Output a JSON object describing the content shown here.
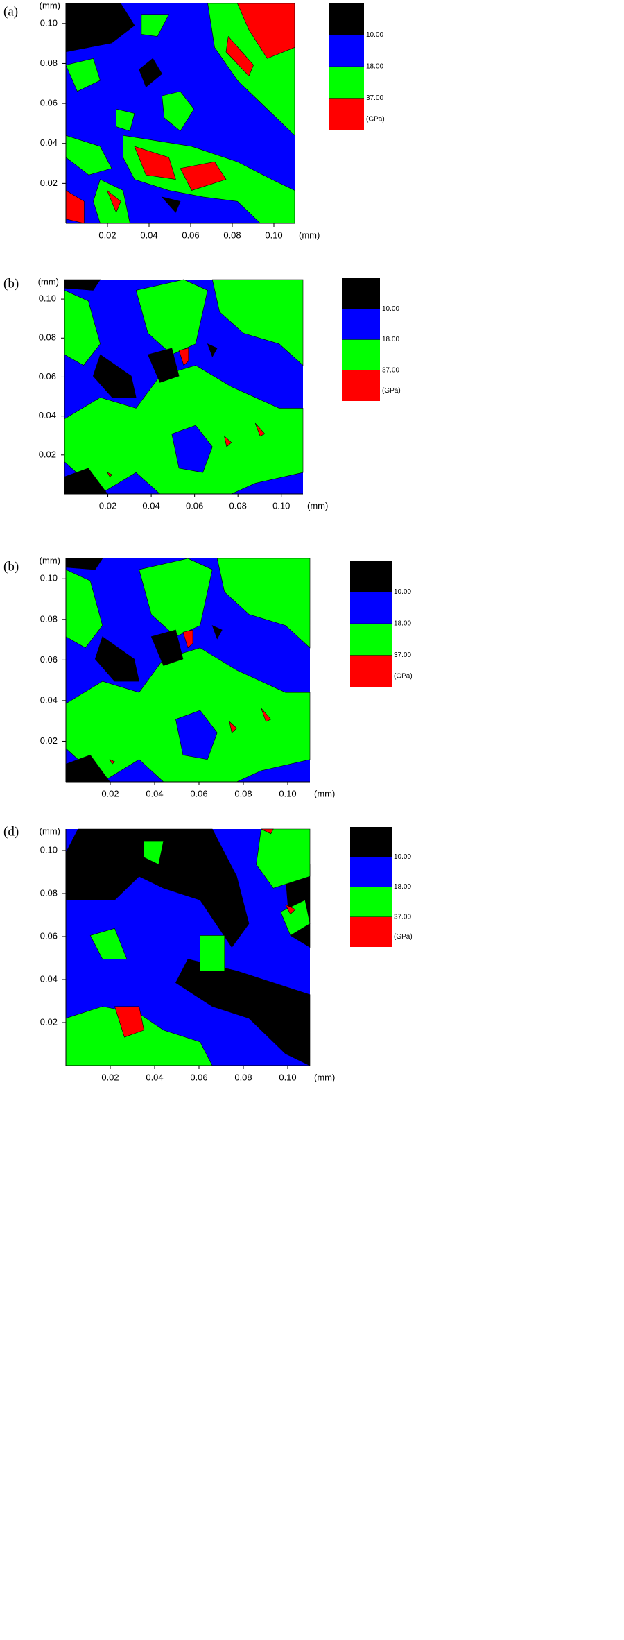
{
  "chart_data": [
    {
      "type": "contour",
      "panel_label": "(a)",
      "x_unit": "(mm)",
      "y_unit": "(mm)",
      "xlim": [
        0,
        0.11
      ],
      "ylim": [
        0,
        0.11
      ],
      "xticks": [
        0.02,
        0.04,
        0.06,
        0.08,
        {
          "value": 0.1,
          "label": "0.10"
        }
      ],
      "yticks": [
        0.02,
        0.04,
        0.06,
        0.08,
        {
          "value": 0.1,
          "label": "0.10"
        }
      ],
      "levels": [
        {
          "value": 10,
          "label": "10.00"
        },
        {
          "value": 18,
          "label": "18.00"
        },
        {
          "value": 37,
          "label": "37.00"
        }
      ],
      "level_unit": "(GPa)",
      "colors": [
        "#000000",
        "#0000ff",
        "#00ff00",
        "#ff0000"
      ]
    },
    {
      "type": "contour",
      "panel_label": "(b)",
      "x_unit": "(mm)",
      "y_unit": "(mm)",
      "xlim": [
        0,
        0.11
      ],
      "ylim": [
        0,
        0.11
      ],
      "xticks": [
        0.02,
        0.04,
        0.06,
        0.08,
        {
          "value": 0.1,
          "label": "0.10"
        }
      ],
      "yticks": [
        0.02,
        0.04,
        0.06,
        0.08,
        {
          "value": 0.1,
          "label": "0.10"
        }
      ],
      "levels": [
        {
          "value": 10,
          "label": "10.00"
        },
        {
          "value": 18,
          "label": "18.00"
        },
        {
          "value": 37,
          "label": "37.00"
        }
      ],
      "level_unit": "(GPa)",
      "colors": [
        "#000000",
        "#0000ff",
        "#00ff00",
        "#ff0000"
      ]
    },
    {
      "type": "contour",
      "panel_label": "(b)",
      "x_unit": "(mm)",
      "y_unit": "(mm)",
      "xlim": [
        0,
        0.11
      ],
      "ylim": [
        0,
        0.11
      ],
      "xticks": [
        0.02,
        0.04,
        0.06,
        0.08,
        {
          "value": 0.1,
          "label": "0.10"
        }
      ],
      "yticks": [
        0.02,
        0.04,
        0.06,
        0.08,
        {
          "value": 0.1,
          "label": "0.10"
        }
      ],
      "levels": [
        {
          "value": 10,
          "label": "10.00"
        },
        {
          "value": 18,
          "label": "18.00"
        },
        {
          "value": 37,
          "label": "37.00"
        }
      ],
      "level_unit": "(GPa)",
      "colors": [
        "#000000",
        "#0000ff",
        "#00ff00",
        "#ff0000"
      ]
    },
    {
      "type": "contour",
      "panel_label": "(d)",
      "x_unit": "(mm)",
      "y_unit": "(mm)",
      "xlim": [
        0,
        0.11
      ],
      "ylim": [
        0,
        0.11
      ],
      "xticks": [
        0.02,
        0.04,
        0.06,
        0.08,
        {
          "value": 0.1,
          "label": "0.10"
        }
      ],
      "yticks": [
        0.02,
        0.04,
        0.06,
        0.08,
        {
          "value": 0.1,
          "label": "0.10"
        }
      ],
      "levels": [
        {
          "value": 10,
          "label": "10.00"
        },
        {
          "value": 18,
          "label": "18.00"
        },
        {
          "value": 37,
          "label": "37.00"
        }
      ],
      "level_unit": "(GPa)",
      "colors": [
        "#000000",
        "#0000ff",
        "#00ff00",
        "#ff0000"
      ]
    }
  ]
}
